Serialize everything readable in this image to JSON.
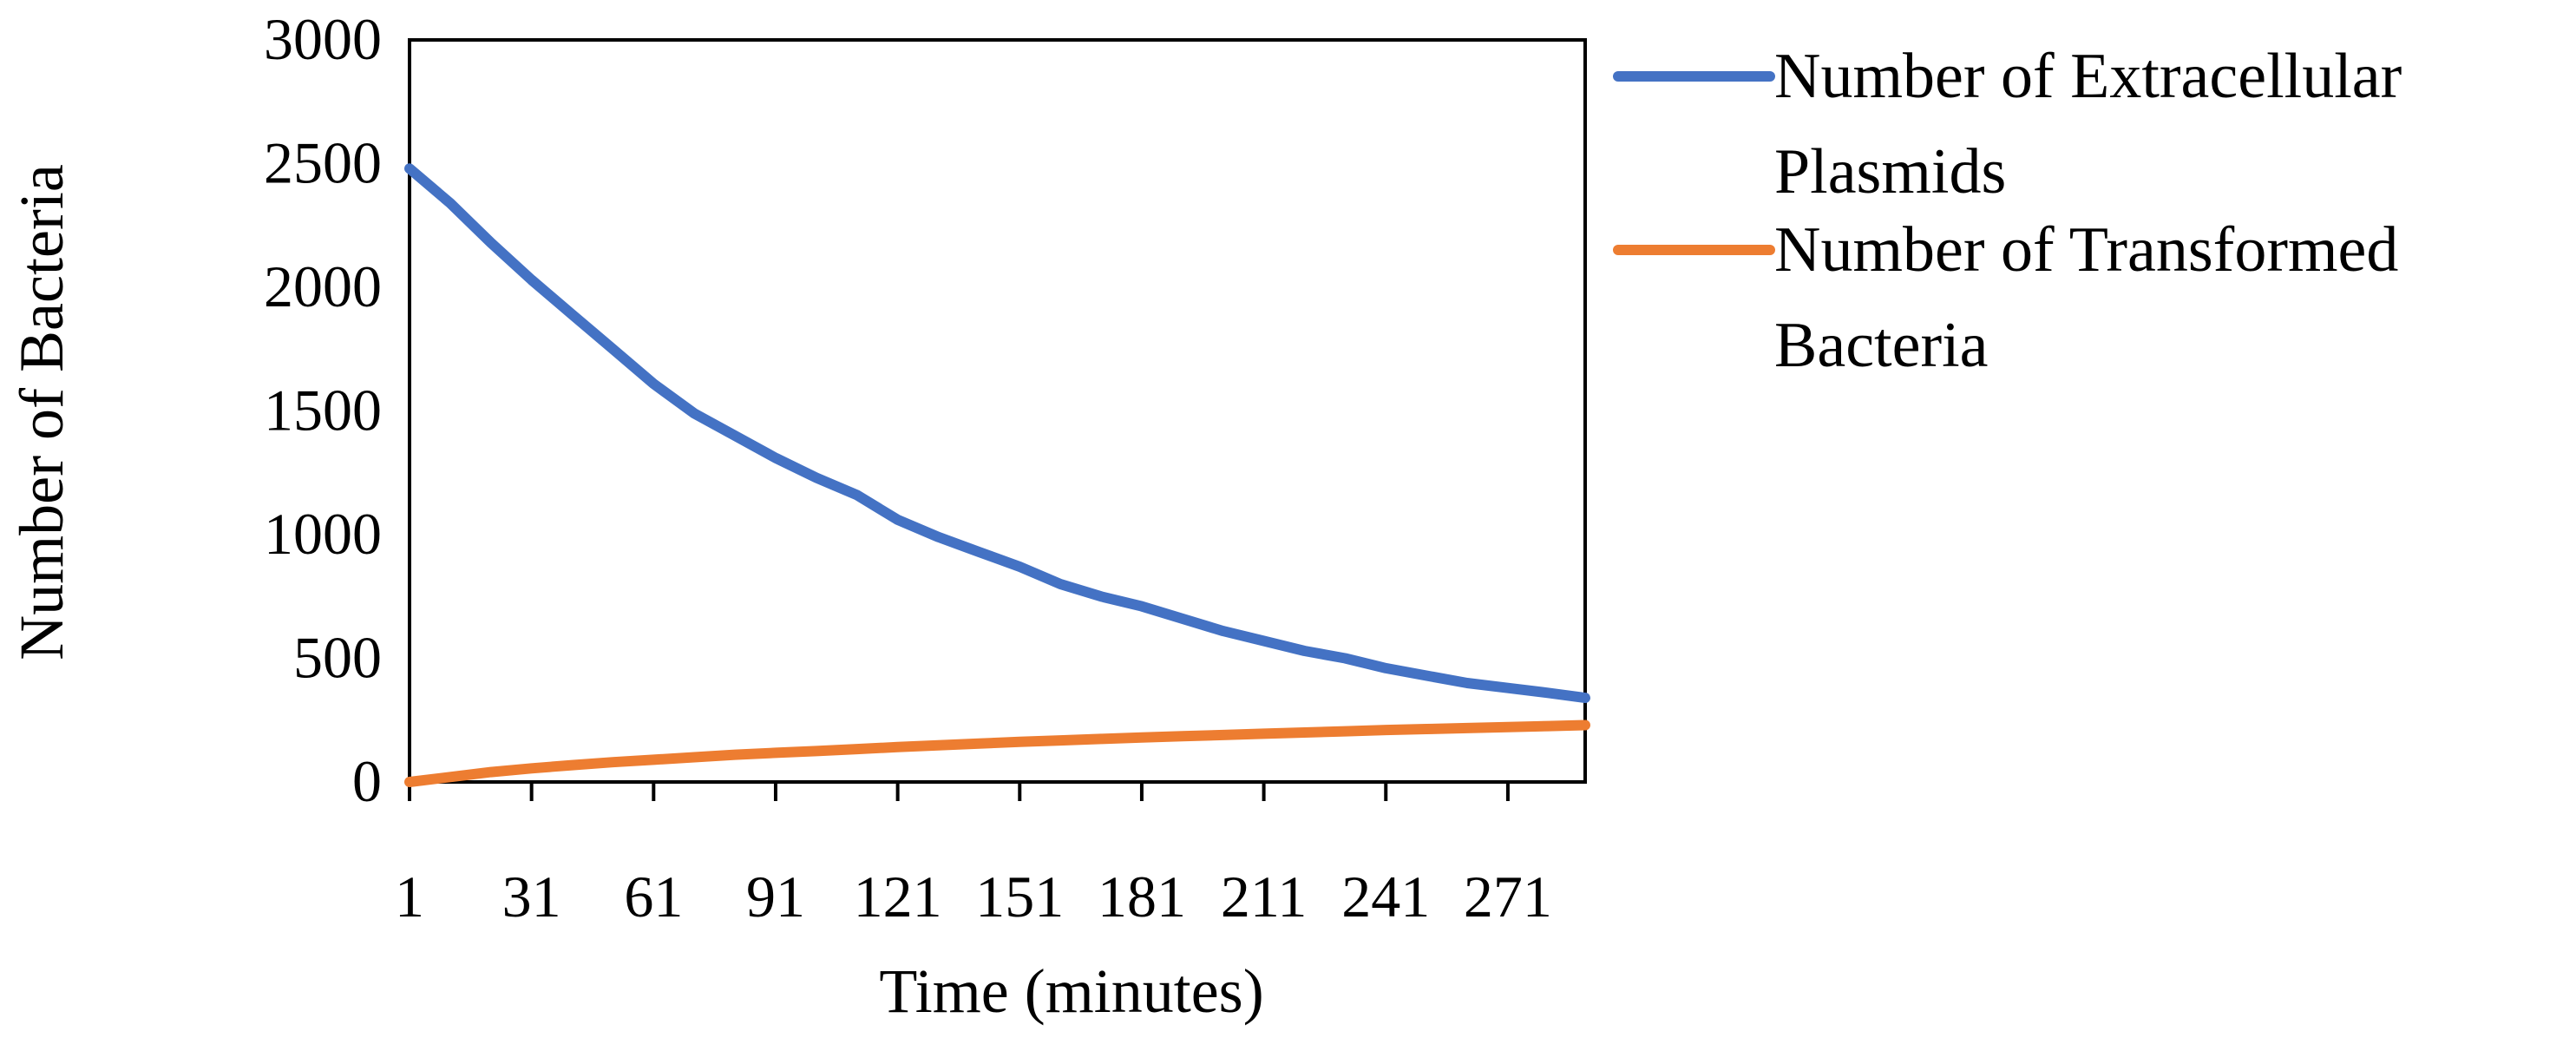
{
  "chart_data": {
    "type": "line",
    "title": "",
    "xlabel": "Time (minutes)",
    "ylabel": "Number of Bacteria",
    "xlim": [
      1,
      290
    ],
    "ylim": [
      0,
      3000
    ],
    "x_ticks": [
      "1",
      "31",
      "61",
      "91",
      "121",
      "151",
      "181",
      "211",
      "241",
      "271"
    ],
    "y_ticks": [
      "0",
      "500",
      "1000",
      "1500",
      "2000",
      "2500",
      "3000"
    ],
    "x": [
      1,
      11,
      21,
      31,
      41,
      51,
      61,
      71,
      81,
      91,
      101,
      111,
      121,
      131,
      141,
      151,
      161,
      171,
      181,
      191,
      201,
      211,
      221,
      231,
      241,
      251,
      261,
      271,
      281,
      290
    ],
    "series": [
      {
        "name": "Number of Extracellular Plasmids",
        "color": "#4472C4",
        "values": [
          2480,
          2340,
          2180,
          2030,
          1890,
          1750,
          1610,
          1490,
          1400,
          1310,
          1230,
          1160,
          1060,
          990,
          930,
          870,
          800,
          750,
          710,
          660,
          610,
          570,
          530,
          500,
          460,
          430,
          400,
          380,
          360,
          340
        ]
      },
      {
        "name": "Number of Transformed Bacteria",
        "color": "#ED7D31",
        "values": [
          0,
          20,
          40,
          55,
          68,
          80,
          90,
          100,
          110,
          118,
          125,
          133,
          141,
          148,
          155,
          162,
          168,
          174,
          180,
          185,
          190,
          195,
          200,
          205,
          210,
          214,
          218,
          222,
          226,
          230
        ]
      }
    ],
    "legend_position": "right",
    "grid": false
  }
}
